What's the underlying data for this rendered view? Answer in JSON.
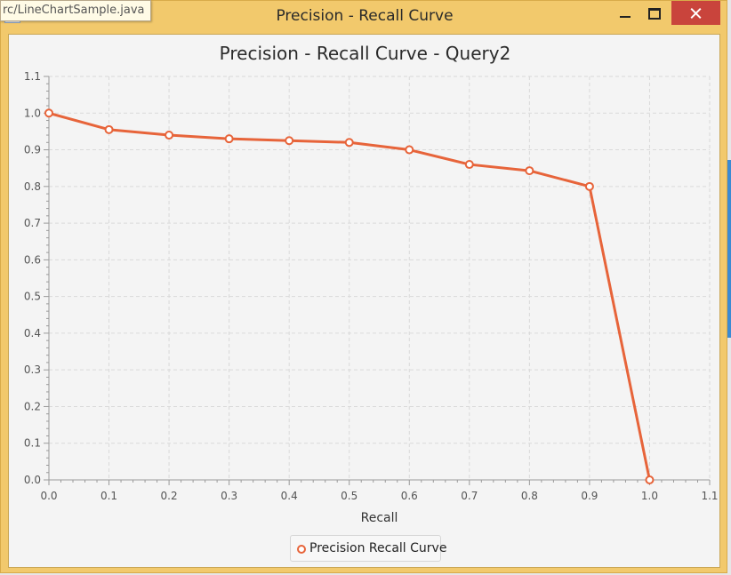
{
  "window": {
    "title": "Precision - Recall Curve",
    "tooltip": "rc/LineChartSample.java"
  },
  "colors": {
    "series": "#e7643a",
    "titlebar": "#f2c96c",
    "close_button": "#c9443c",
    "plot_background": "#f4f4f4",
    "grid": "#d9d9d9"
  },
  "chart_data": {
    "type": "line",
    "title": "Precision - Recall Curve - Query2",
    "xlabel": "Recall",
    "ylabel": "",
    "xlim": [
      0.0,
      1.1
    ],
    "ylim": [
      0.0,
      1.1
    ],
    "xticks": [
      "0.0",
      "0.1",
      "0.2",
      "0.3",
      "0.4",
      "0.5",
      "0.6",
      "0.7",
      "0.8",
      "0.9",
      "1.0",
      "1.1"
    ],
    "yticks": [
      "0.0",
      "0.1",
      "0.2",
      "0.3",
      "0.4",
      "0.5",
      "0.6",
      "0.7",
      "0.8",
      "0.9",
      "1.0",
      "1.1"
    ],
    "grid": true,
    "legend_position": "bottom",
    "series": [
      {
        "name": "Precision Recall Curve",
        "x": [
          0.0,
          0.1,
          0.2,
          0.3,
          0.4,
          0.5,
          0.6,
          0.7,
          0.8,
          0.9,
          1.0
        ],
        "y": [
          1.0,
          0.955,
          0.94,
          0.93,
          0.925,
          0.92,
          0.9,
          0.86,
          0.843,
          0.8,
          0.0
        ]
      }
    ]
  }
}
